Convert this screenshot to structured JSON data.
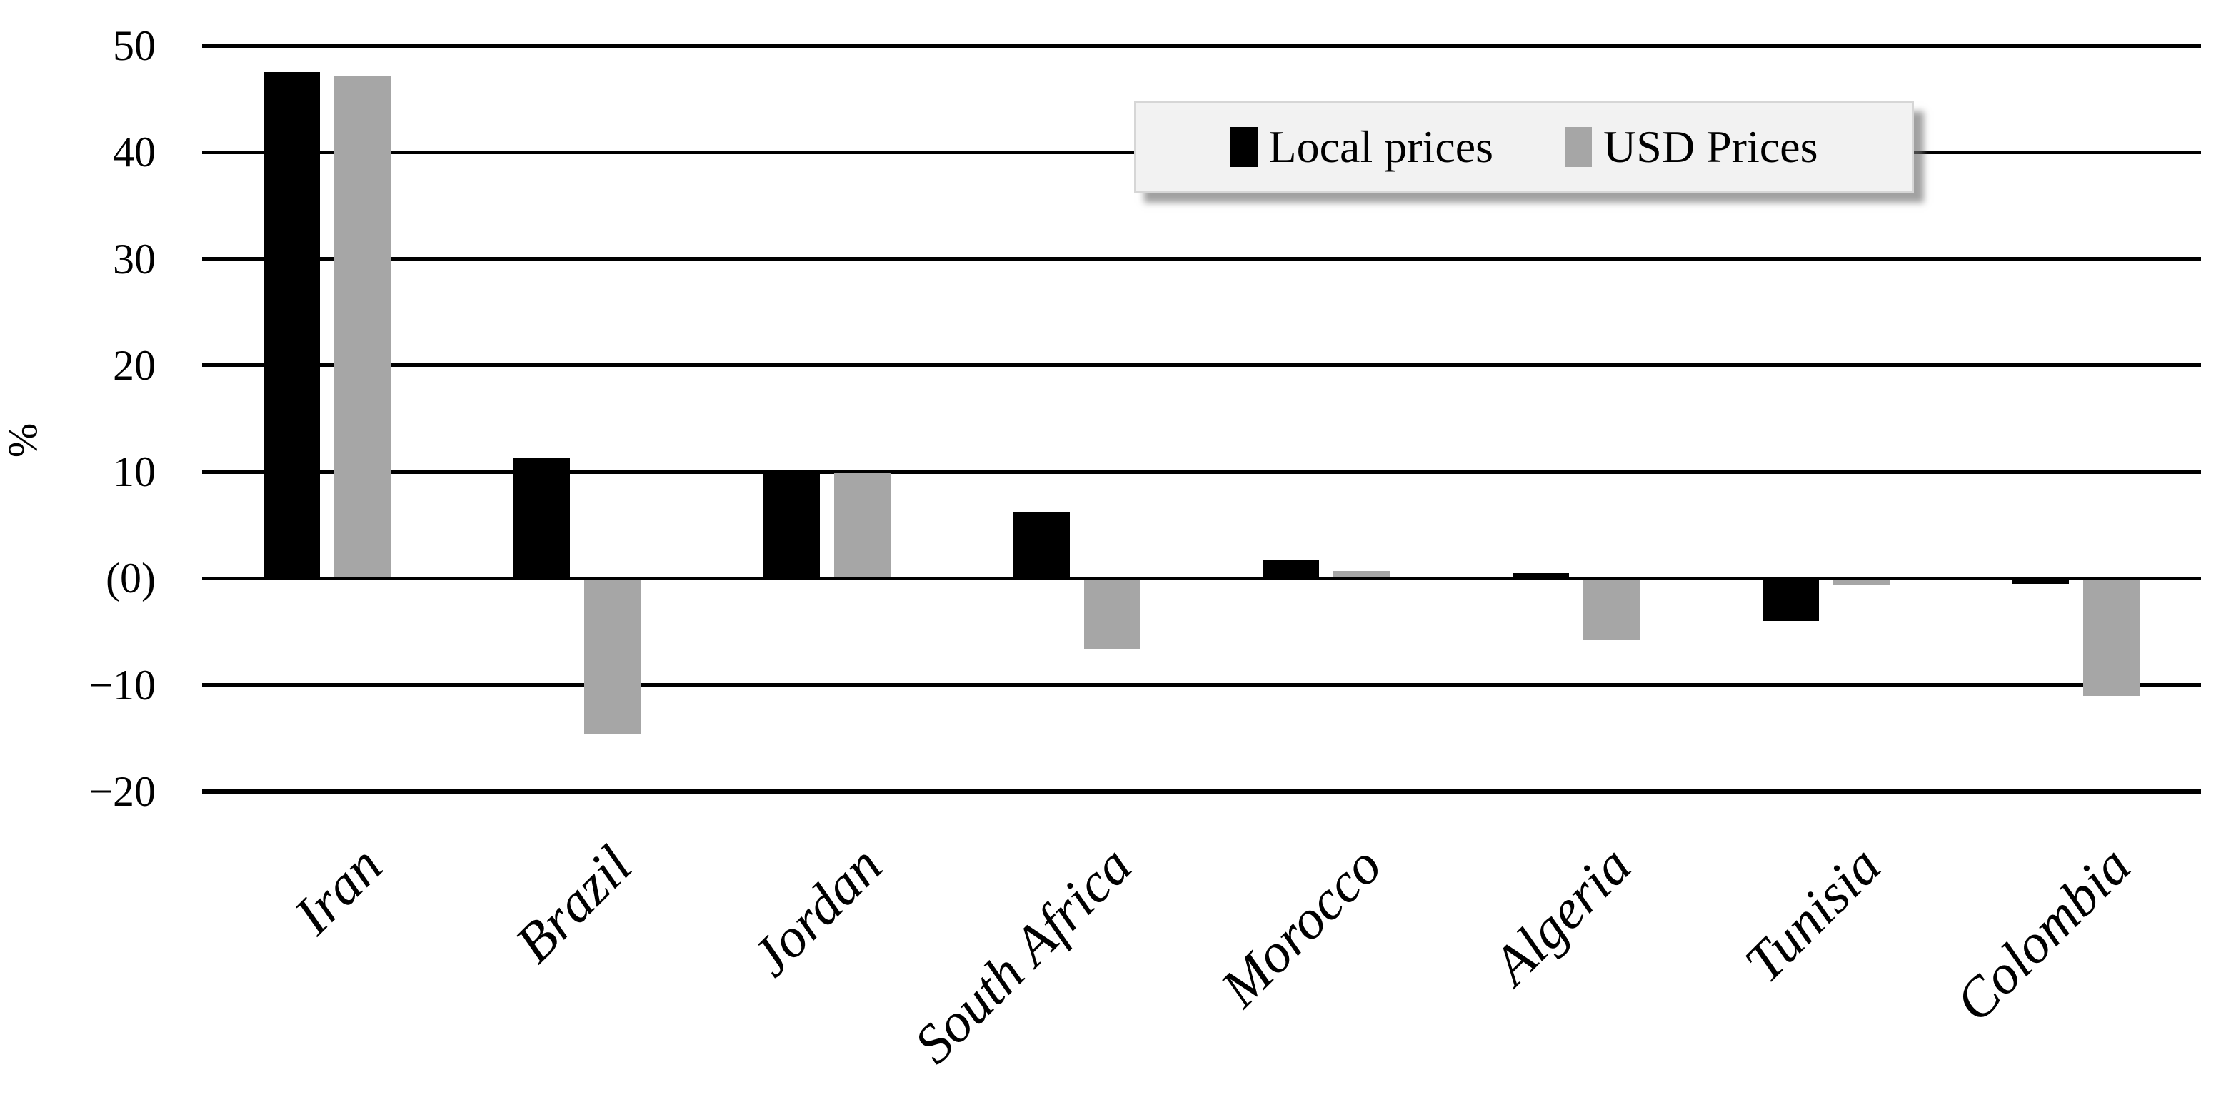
{
  "chart_data": {
    "type": "bar",
    "title": "",
    "ylabel": "%",
    "xlabel": "",
    "ylim": [
      -20,
      50
    ],
    "grid": "horizontal",
    "legend_position": "top-right-boxed",
    "categories": [
      "Iran",
      "Brazil",
      "Jordan",
      "South Africa",
      "Morocco",
      "Algeria",
      "Tunisia",
      "Colombia"
    ],
    "series": [
      {
        "name": "Local prices",
        "color": "#000000",
        "values": [
          47.5,
          11.3,
          10.0,
          6.2,
          1.7,
          0.5,
          -4.0,
          -0.5
        ]
      },
      {
        "name": "USD Prices",
        "color": "#a6a6a6",
        "values": [
          47.2,
          -14.6,
          9.9,
          -6.7,
          0.7,
          -5.7,
          -0.6,
          -11.0
        ]
      }
    ],
    "yticks": [
      {
        "value": 50,
        "label": "50"
      },
      {
        "value": 40,
        "label": "40"
      },
      {
        "value": 30,
        "label": "30"
      },
      {
        "value": 20,
        "label": "20"
      },
      {
        "value": 10,
        "label": "10"
      },
      {
        "value": 0,
        "label": "(0)"
      },
      {
        "value": -10,
        "label": "−10"
      },
      {
        "value": -20,
        "label": "−20"
      }
    ],
    "colors": {
      "gridline": "#000000",
      "legend_background": "#f2f2f2",
      "legend_border": "#d6d6d6"
    }
  }
}
